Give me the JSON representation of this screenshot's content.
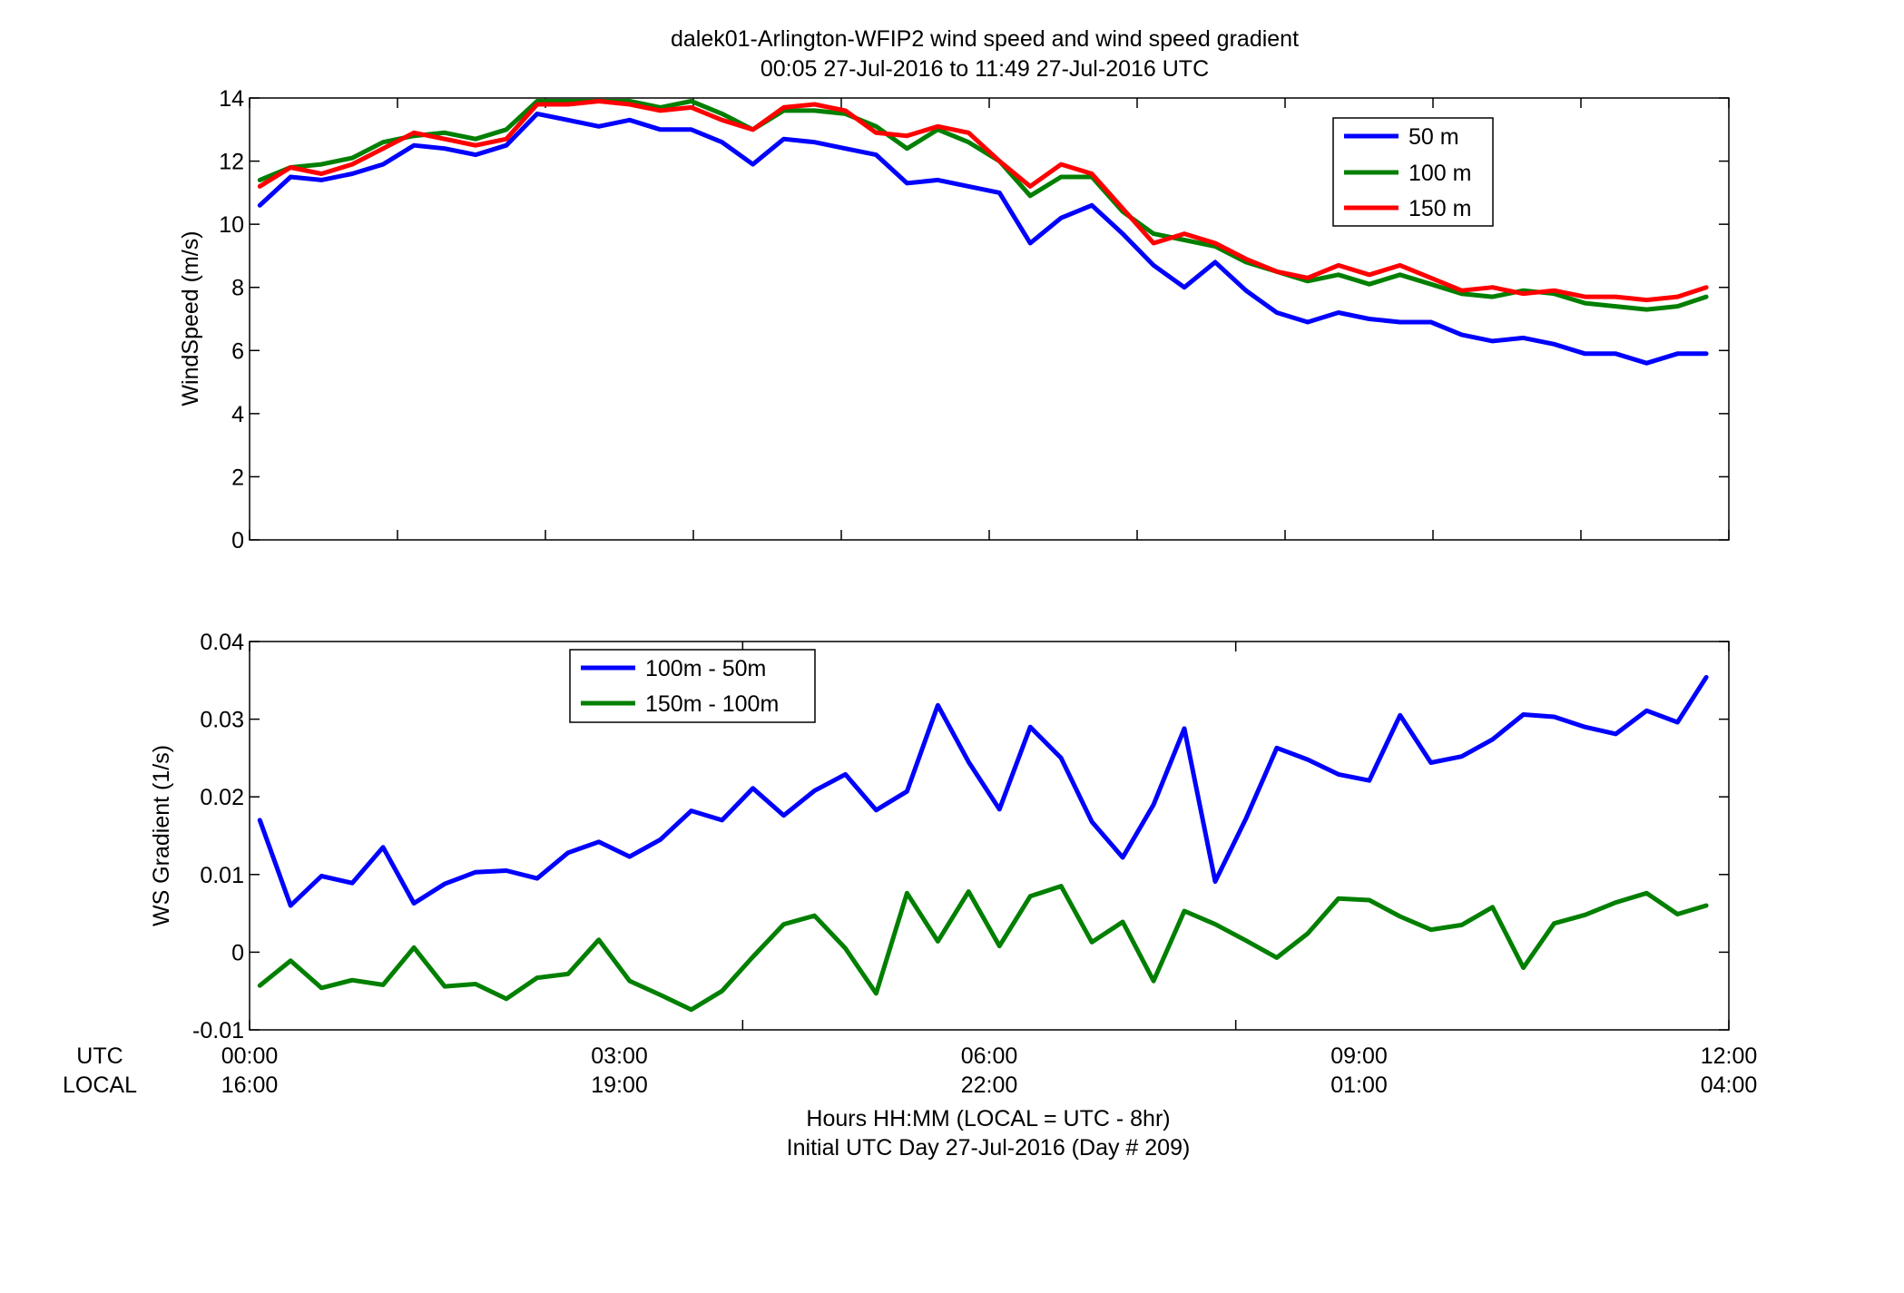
{
  "figure": {
    "title_line1": "dalek01-Arlington-WFIP2  wind speed and wind speed gradient",
    "title_line2": "00:05 27-Jul-2016 to 11:49 27-Jul-2016  UTC",
    "xlabel_line1": "Hours HH:MM  (LOCAL = UTC - 8hr)",
    "xlabel_line2": "Initial UTC Day 27-Jul-2016 (Day # 209)",
    "row_label_utc": "UTC",
    "row_label_local": "LOCAL",
    "utc_ticks": [
      "00:00",
      "03:00",
      "06:00",
      "09:00",
      "12:00"
    ],
    "local_ticks": [
      "16:00",
      "19:00",
      "22:00",
      "01:00",
      "04:00"
    ]
  },
  "chart_data": [
    {
      "type": "line",
      "ylabel": "WindSpeed (m/s)",
      "xlim": [
        0,
        12
      ],
      "ylim": [
        0,
        14
      ],
      "yticks": [
        0,
        2,
        4,
        6,
        8,
        10,
        12,
        14
      ],
      "x_minor_ticks_every_hours": 1.2,
      "grid": false,
      "legend_position": "top-right",
      "x": [
        0.083,
        0.333,
        0.583,
        0.833,
        1.083,
        1.333,
        1.583,
        1.833,
        2.083,
        2.333,
        2.583,
        2.833,
        3.083,
        3.333,
        3.583,
        3.833,
        4.083,
        4.333,
        4.583,
        4.833,
        5.083,
        5.333,
        5.583,
        5.833,
        6.083,
        6.333,
        6.583,
        6.833,
        7.083,
        7.333,
        7.583,
        7.833,
        8.083,
        8.333,
        8.583,
        8.833,
        9.083,
        9.333,
        9.583,
        9.833,
        10.083,
        10.333,
        10.583,
        10.833,
        11.083,
        11.333,
        11.583,
        11.817
      ],
      "series": [
        {
          "name": "50 m",
          "color": "#0000ff",
          "values": [
            10.6,
            11.5,
            11.4,
            11.6,
            11.9,
            12.5,
            12.4,
            12.2,
            12.5,
            13.5,
            13.3,
            13.1,
            13.3,
            13.0,
            13.0,
            12.6,
            11.9,
            12.7,
            12.6,
            12.4,
            12.2,
            11.3,
            11.4,
            11.2,
            11.0,
            9.4,
            10.2,
            10.6,
            9.7,
            8.7,
            8.0,
            8.8,
            7.9,
            7.2,
            6.9,
            7.2,
            7.0,
            6.9,
            6.9,
            6.5,
            6.3,
            6.4,
            6.2,
            5.9,
            5.9,
            5.6,
            5.9,
            5.9
          ]
        },
        {
          "name": "100 m",
          "color": "#007f00",
          "values": [
            11.4,
            11.8,
            11.9,
            12.1,
            12.6,
            12.8,
            12.9,
            12.7,
            13.0,
            13.9,
            13.9,
            13.9,
            13.9,
            13.7,
            13.9,
            13.5,
            13.0,
            13.6,
            13.6,
            13.5,
            13.1,
            12.4,
            13.0,
            12.6,
            12.0,
            10.9,
            11.5,
            11.5,
            10.4,
            9.7,
            9.5,
            9.3,
            8.8,
            8.5,
            8.2,
            8.4,
            8.1,
            8.4,
            8.1,
            7.8,
            7.7,
            7.9,
            7.8,
            7.5,
            7.4,
            7.3,
            7.4,
            7.7
          ]
        },
        {
          "name": "150 m",
          "color": "#ff0000",
          "values": [
            11.2,
            11.8,
            11.6,
            11.9,
            12.4,
            12.9,
            12.7,
            12.5,
            12.7,
            13.8,
            13.8,
            13.9,
            13.8,
            13.6,
            13.7,
            13.3,
            13.0,
            13.7,
            13.8,
            13.6,
            12.9,
            12.8,
            13.1,
            12.9,
            12.0,
            11.2,
            11.9,
            11.6,
            10.5,
            9.4,
            9.7,
            9.4,
            8.9,
            8.5,
            8.3,
            8.7,
            8.4,
            8.7,
            8.3,
            7.9,
            8.0,
            7.8,
            7.9,
            7.7,
            7.7,
            7.6,
            7.7,
            8.0
          ]
        }
      ]
    },
    {
      "type": "line",
      "ylabel": "WS Gradient (1/s)",
      "xlim": [
        0,
        12
      ],
      "ylim": [
        -0.01,
        0.04
      ],
      "yticks": [
        -0.01,
        0,
        0.01,
        0.02,
        0.03,
        0.04
      ],
      "ytick_labels": [
        "-0.01",
        "0",
        "0.01",
        "0.02",
        "0.03",
        "0.04"
      ],
      "grid": false,
      "legend_position": "top-left",
      "x": [
        0.083,
        0.333,
        0.583,
        0.833,
        1.083,
        1.333,
        1.583,
        1.833,
        2.083,
        2.333,
        2.583,
        2.833,
        3.083,
        3.333,
        3.583,
        3.833,
        4.083,
        4.333,
        4.583,
        4.833,
        5.083,
        5.333,
        5.583,
        5.833,
        6.083,
        6.333,
        6.583,
        6.833,
        7.083,
        7.333,
        7.583,
        7.833,
        8.083,
        8.333,
        8.583,
        8.833,
        9.083,
        9.333,
        9.583,
        9.833,
        10.083,
        10.333,
        10.583,
        10.833,
        11.083,
        11.333,
        11.583,
        11.817
      ],
      "series": [
        {
          "name": "100m - 50m",
          "color": "#0000ff",
          "values": [
            0.017,
            0.006,
            0.0098,
            0.0089,
            0.0135,
            0.0063,
            0.0088,
            0.0103,
            0.0105,
            0.0095,
            0.0128,
            0.0142,
            0.0123,
            0.0145,
            0.0182,
            0.017,
            0.0211,
            0.0176,
            0.0208,
            0.0229,
            0.0183,
            0.0207,
            0.0318,
            0.0245,
            0.0184,
            0.029,
            0.025,
            0.0168,
            0.0122,
            0.019,
            0.0288,
            0.0091,
            0.0172,
            0.0263,
            0.0248,
            0.0229,
            0.0221,
            0.0305,
            0.0244,
            0.0252,
            0.0274,
            0.0306,
            0.0303,
            0.029,
            0.0281,
            0.0311,
            0.0296,
            0.0354
          ]
        },
        {
          "name": "150m - 100m",
          "color": "#007f00",
          "values": [
            -0.0043,
            -0.0011,
            -0.0046,
            -0.0036,
            -0.0042,
            0.0006,
            -0.0044,
            -0.0041,
            -0.006,
            -0.0033,
            -0.0028,
            0.0016,
            -0.0037,
            -0.0055,
            -0.0074,
            -0.005,
            -0.0006,
            0.0036,
            0.0047,
            0.0005,
            -0.0053,
            0.0076,
            0.0014,
            0.0078,
            0.0008,
            0.0072,
            0.0085,
            0.0013,
            0.0039,
            -0.0037,
            0.0053,
            0.0036,
            0.0015,
            -0.0007,
            0.0024,
            0.0069,
            0.0067,
            0.0046,
            0.0029,
            0.0035,
            0.0058,
            -0.002,
            0.0037,
            0.0048,
            0.0064,
            0.0076,
            0.0049,
            0.006
          ]
        }
      ]
    }
  ]
}
